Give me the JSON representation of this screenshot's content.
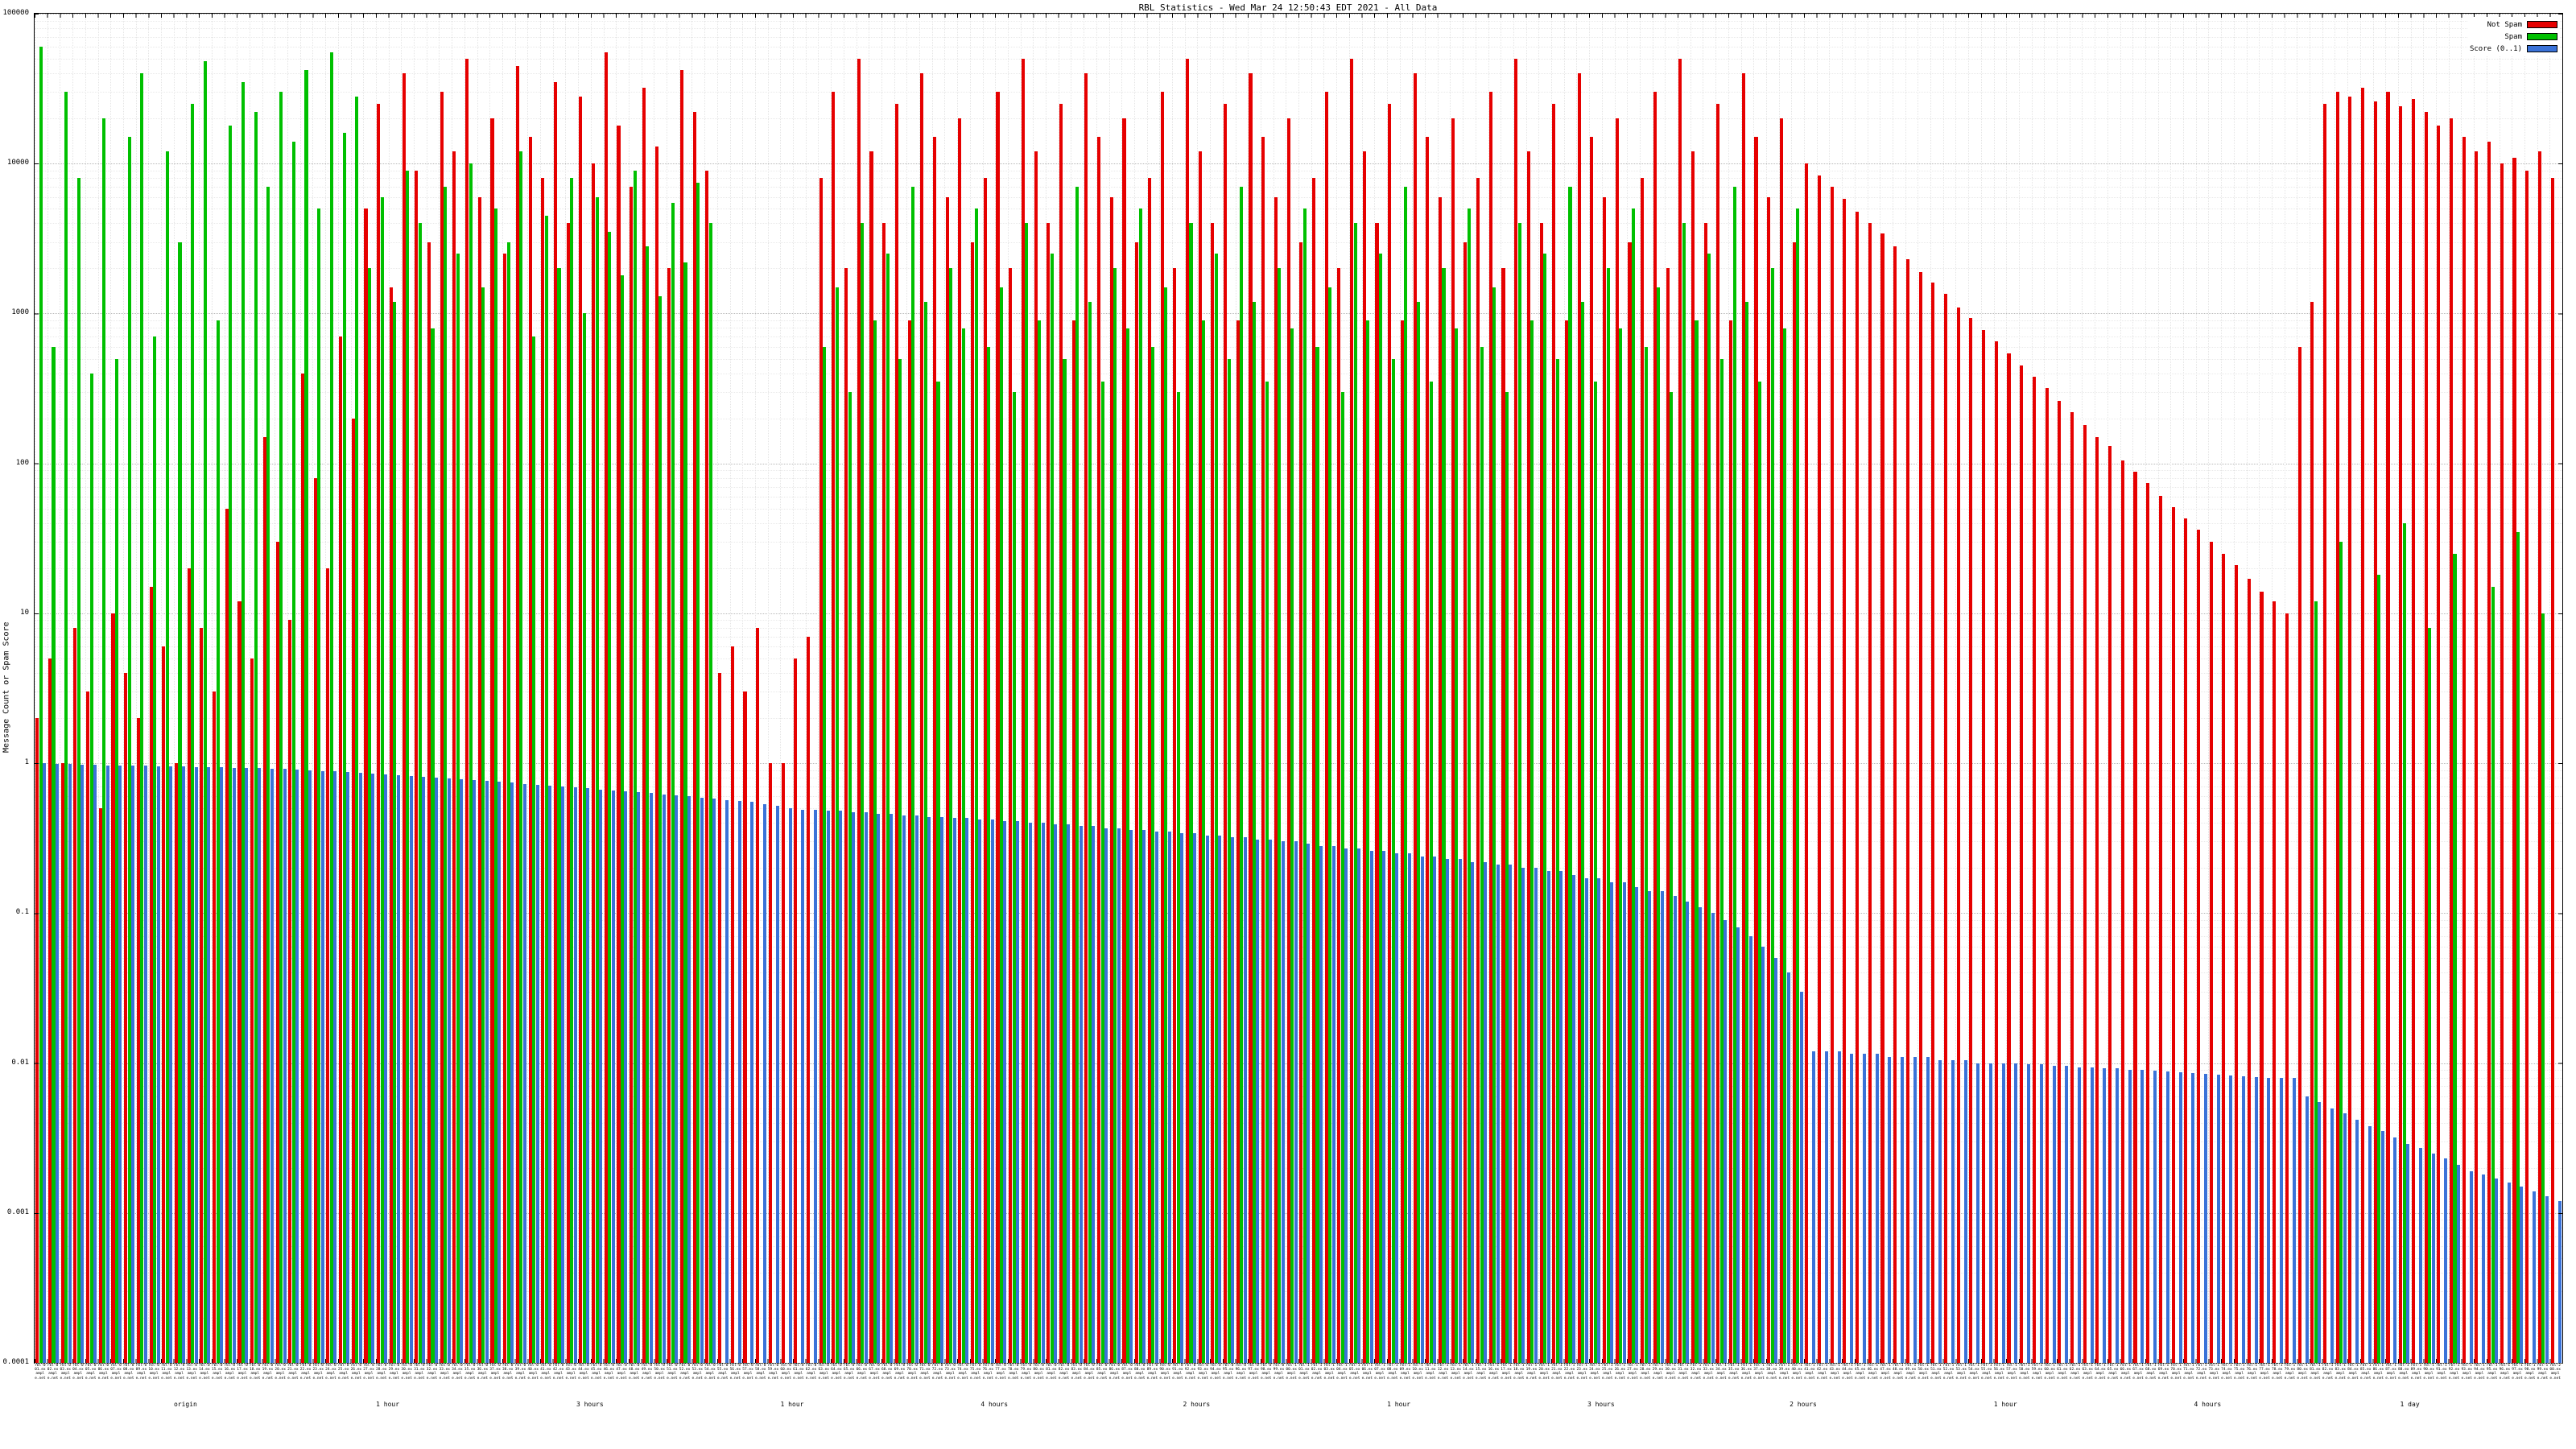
{
  "chart_data": {
    "type": "bar",
    "title": "RBL Statistics - Wed Mar 24 12:50:43 EDT 2021 - All Data",
    "ylabel": "Message Count or Spam Score",
    "y_scale": "log",
    "ylim": [
      0.0001,
      100000
    ],
    "y_ticks": [
      "100000",
      "10000",
      "1000",
      "100",
      "10",
      "1",
      "0.1",
      "0.01",
      "0.001",
      "0.0001"
    ],
    "grid": true,
    "legend_position": "top-right",
    "legend": [
      {
        "label": "Not Spam",
        "color": "#e60000"
      },
      {
        "label": "Spam",
        "color": "#00c000"
      },
      {
        "label": "Score (0..1)",
        "color": "#3a72d8"
      }
    ],
    "x_sublabels": [
      {
        "pos": 0.06,
        "text": "origin"
      },
      {
        "pos": 0.14,
        "text": "1 hour"
      },
      {
        "pos": 0.22,
        "text": "3 hours"
      },
      {
        "pos": 0.3,
        "text": "1 hour"
      },
      {
        "pos": 0.38,
        "text": "4 hours"
      },
      {
        "pos": 0.46,
        "text": "2 hours"
      },
      {
        "pos": 0.54,
        "text": "1 hour"
      },
      {
        "pos": 0.62,
        "text": "3 hours"
      },
      {
        "pos": 0.7,
        "text": "2 hours"
      },
      {
        "pos": 0.78,
        "text": "1 hour"
      },
      {
        "pos": 0.86,
        "text": "4 hours"
      },
      {
        "pos": 0.94,
        "text": "1 day"
      }
    ],
    "categories": [
      "rbl-001.example.net",
      "rbl-002.example.net",
      "rbl-003.example.net",
      "rbl-004.example.net",
      "rbl-005.example.net",
      "rbl-006.example.net",
      "rbl-007.example.net",
      "rbl-008.example.net",
      "rbl-009.example.net",
      "rbl-010.example.net",
      "rbl-011.example.net",
      "rbl-012.example.net",
      "rbl-013.example.net",
      "rbl-014.example.net",
      "rbl-015.example.net",
      "rbl-016.example.net",
      "rbl-017.example.net",
      "rbl-018.example.net",
      "rbl-019.example.net",
      "rbl-020.example.net",
      "rbl-021.example.net",
      "rbl-022.example.net",
      "rbl-023.example.net",
      "rbl-024.example.net",
      "rbl-025.example.net",
      "rbl-026.example.net",
      "rbl-027.example.net",
      "rbl-028.example.net",
      "rbl-029.example.net",
      "rbl-030.example.net",
      "rbl-031.example.net",
      "rbl-032.example.net",
      "rbl-033.example.net",
      "rbl-034.example.net",
      "rbl-035.example.net",
      "rbl-036.example.net",
      "rbl-037.example.net",
      "rbl-038.example.net",
      "rbl-039.example.net",
      "rbl-040.example.net",
      "rbl-041.example.net",
      "rbl-042.example.net",
      "rbl-043.example.net",
      "rbl-044.example.net",
      "rbl-045.example.net",
      "rbl-046.example.net",
      "rbl-047.example.net",
      "rbl-048.example.net",
      "rbl-049.example.net",
      "rbl-050.example.net",
      "rbl-051.example.net",
      "rbl-052.example.net",
      "rbl-053.example.net",
      "rbl-054.example.net",
      "rbl-055.example.net",
      "rbl-056.example.net",
      "rbl-057.example.net",
      "rbl-058.example.net",
      "rbl-059.example.net",
      "rbl-060.example.net",
      "rbl-061.example.net",
      "rbl-062.example.net",
      "rbl-063.example.net",
      "rbl-064.example.net",
      "rbl-065.example.net",
      "rbl-066.example.net",
      "rbl-067.example.net",
      "rbl-068.example.net",
      "rbl-069.example.net",
      "rbl-070.example.net",
      "rbl-071.example.net",
      "rbl-072.example.net",
      "rbl-073.example.net",
      "rbl-074.example.net",
      "rbl-075.example.net",
      "rbl-076.example.net",
      "rbl-077.example.net",
      "rbl-078.example.net",
      "rbl-079.example.net",
      "rbl-080.example.net",
      "rbl-081.example.net",
      "rbl-082.example.net",
      "rbl-083.example.net",
      "rbl-084.example.net",
      "rbl-085.example.net",
      "rbl-086.example.net",
      "rbl-087.example.net",
      "rbl-088.example.net",
      "rbl-089.example.net",
      "rbl-090.example.net",
      "rbl-091.example.net",
      "rbl-092.example.net",
      "rbl-093.example.net",
      "rbl-094.example.net",
      "rbl-095.example.net",
      "rbl-096.example.net",
      "rbl-097.example.net",
      "rbl-098.example.net",
      "rbl-099.example.net",
      "rbl-100.example.net",
      "rbl-101.example.net",
      "rbl-102.example.net",
      "rbl-103.example.net",
      "rbl-104.example.net",
      "rbl-105.example.net",
      "rbl-106.example.net",
      "rbl-107.example.net",
      "rbl-108.example.net",
      "rbl-109.example.net",
      "rbl-110.example.net",
      "rbl-111.example.net",
      "rbl-112.example.net",
      "rbl-113.example.net",
      "rbl-114.example.net",
      "rbl-115.example.net",
      "rbl-116.example.net",
      "rbl-117.example.net",
      "rbl-118.example.net",
      "rbl-119.example.net",
      "rbl-120.example.net",
      "rbl-121.example.net",
      "rbl-122.example.net",
      "rbl-123.example.net",
      "rbl-124.example.net",
      "rbl-125.example.net",
      "rbl-126.example.net",
      "rbl-127.example.net",
      "rbl-128.example.net",
      "rbl-129.example.net",
      "rbl-130.example.net",
      "rbl-131.example.net",
      "rbl-132.example.net",
      "rbl-133.example.net",
      "rbl-134.example.net",
      "rbl-135.example.net",
      "rbl-136.example.net",
      "rbl-137.example.net",
      "rbl-138.example.net",
      "rbl-139.example.net",
      "rbl-140.example.net",
      "rbl-141.example.net",
      "rbl-142.example.net",
      "rbl-143.example.net",
      "rbl-144.example.net",
      "rbl-145.example.net",
      "rbl-146.example.net",
      "rbl-147.example.net",
      "rbl-148.example.net",
      "rbl-149.example.net",
      "rbl-150.example.net",
      "rbl-151.example.net",
      "rbl-152.example.net",
      "rbl-153.example.net",
      "rbl-154.example.net",
      "rbl-155.example.net",
      "rbl-156.example.net",
      "rbl-157.example.net",
      "rbl-158.example.net",
      "rbl-159.example.net",
      "rbl-160.example.net",
      "rbl-161.example.net",
      "rbl-162.example.net",
      "rbl-163.example.net",
      "rbl-164.example.net",
      "rbl-165.example.net",
      "rbl-166.example.net",
      "rbl-167.example.net",
      "rbl-168.example.net",
      "rbl-169.example.net",
      "rbl-170.example.net",
      "rbl-171.example.net",
      "rbl-172.example.net",
      "rbl-173.example.net",
      "rbl-174.example.net",
      "rbl-175.example.net",
      "rbl-176.example.net",
      "rbl-177.example.net",
      "rbl-178.example.net",
      "rbl-179.example.net",
      "rbl-180.example.net",
      "rbl-181.example.net",
      "rbl-182.example.net",
      "rbl-183.example.net",
      "rbl-184.example.net",
      "rbl-185.example.net",
      "rbl-186.example.net",
      "rbl-187.example.net",
      "rbl-188.example.net",
      "rbl-189.example.net",
      "rbl-190.example.net",
      "rbl-191.example.net",
      "rbl-192.example.net",
      "rbl-193.example.net",
      "rbl-194.example.net",
      "rbl-195.example.net",
      "rbl-196.example.net",
      "rbl-197.example.net",
      "rbl-198.example.net",
      "rbl-199.example.net",
      "rbl-200.example.net"
    ],
    "series": [
      {
        "name": "Not Spam",
        "values": [
          2,
          5,
          1,
          8,
          3,
          0.5,
          10,
          4,
          2,
          15,
          6,
          1,
          20,
          8,
          3,
          50,
          12,
          5,
          150,
          30,
          9,
          400,
          80,
          20,
          700,
          200,
          5000,
          25000,
          1500,
          40000,
          9000,
          3000,
          30000,
          12000,
          50000,
          6000,
          20000,
          2500,
          45000,
          15000,
          8000,
          35000,
          4000,
          28000,
          10000,
          55000,
          18000,
          7000,
          32000,
          13000,
          2000,
          42000,
          22000,
          9000,
          4,
          6,
          3,
          8,
          1,
          1,
          5,
          7,
          8000,
          30000,
          2000,
          50000,
          12000,
          4000,
          25000,
          900,
          40000,
          15000,
          6000,
          20000,
          3000,
          8000,
          30000,
          2000,
          50000,
          12000,
          4000,
          25000,
          900,
          40000,
          15000,
          6000,
          20000,
          3000,
          8000,
          30000,
          2000,
          50000,
          12000,
          4000,
          25000,
          900,
          40000,
          15000,
          6000,
          20000,
          3000,
          8000,
          30000,
          2000,
          50000,
          12000,
          4000,
          25000,
          900,
          40000,
          15000,
          6000,
          20000,
          3000,
          8000,
          30000,
          2000,
          50000,
          12000,
          4000,
          25000,
          900,
          40000,
          15000,
          6000,
          20000,
          3000,
          8000,
          30000,
          2000,
          50000,
          12000,
          4000,
          25000,
          900,
          40000,
          15000,
          6000,
          20000,
          3000,
          10000,
          8300,
          7000,
          5800,
          4800,
          4000,
          3400,
          2800,
          2300,
          1900,
          1600,
          1350,
          1100,
          930,
          780,
          650,
          540,
          450,
          380,
          320,
          260,
          220,
          180,
          150,
          130,
          105,
          88,
          74,
          61,
          51,
          43,
          36,
          30,
          25,
          21,
          17,
          14,
          12,
          10,
          600,
          1200,
          25000,
          30000,
          28000,
          32000,
          26000,
          30000,
          24000,
          27000,
          22000,
          18000,
          20000,
          15000,
          12000,
          14000,
          10000,
          11000,
          9000,
          12000,
          8000
        ]
      },
      {
        "name": "Spam",
        "values": [
          60000,
          600,
          30000,
          8000,
          400,
          20000,
          500,
          15000,
          40000,
          700,
          12000,
          3000,
          25000,
          48000,
          900,
          18000,
          35000,
          22000,
          7000,
          30000,
          14000,
          42000,
          5000,
          55000,
          16000,
          28000,
          2000,
          6000,
          1200,
          9000,
          4000,
          800,
          7000,
          2500,
          10000,
          1500,
          5000,
          3000,
          12000,
          700,
          4500,
          2000,
          8000,
          1000,
          6000,
          3500,
          1800,
          9000,
          2800,
          1300,
          5500,
          2200,
          7500,
          4000,
          0,
          0,
          0,
          0,
          0,
          0,
          0,
          0,
          600,
          1500,
          300,
          4000,
          900,
          2500,
          500,
          7000,
          1200,
          350,
          2000,
          800,
          5000,
          600,
          1500,
          300,
          4000,
          900,
          2500,
          500,
          7000,
          1200,
          350,
          2000,
          800,
          5000,
          600,
          1500,
          300,
          4000,
          900,
          2500,
          500,
          7000,
          1200,
          350,
          2000,
          800,
          5000,
          600,
          1500,
          300,
          4000,
          900,
          2500,
          500,
          7000,
          1200,
          350,
          2000,
          800,
          5000,
          600,
          1500,
          300,
          4000,
          900,
          2500,
          500,
          7000,
          1200,
          350,
          2000,
          800,
          5000,
          600,
          1500,
          300,
          4000,
          900,
          2500,
          500,
          7000,
          1200,
          350,
          2000,
          800,
          5000,
          0,
          0,
          0,
          0,
          0,
          0,
          0,
          0,
          0,
          0,
          0,
          0,
          0,
          0,
          0,
          0,
          0,
          0,
          0,
          0,
          0,
          0,
          0,
          0,
          0,
          0,
          0,
          0,
          0,
          0,
          0,
          0,
          0,
          0,
          0,
          0,
          0,
          0,
          0,
          0,
          12,
          0,
          30,
          0,
          0,
          18,
          0,
          40,
          0,
          8,
          0,
          25,
          0,
          0,
          15,
          0,
          35,
          0,
          10,
          0
        ]
      },
      {
        "name": "Score (0..1)",
        "values": [
          1.0,
          0.99,
          0.99,
          0.98,
          0.98,
          0.97,
          0.97,
          0.96,
          0.96,
          0.95,
          0.95,
          0.95,
          0.94,
          0.94,
          0.94,
          0.93,
          0.93,
          0.93,
          0.92,
          0.92,
          0.91,
          0.9,
          0.89,
          0.88,
          0.87,
          0.86,
          0.85,
          0.84,
          0.83,
          0.82,
          0.81,
          0.8,
          0.79,
          0.78,
          0.77,
          0.76,
          0.75,
          0.74,
          0.73,
          0.72,
          0.71,
          0.7,
          0.69,
          0.68,
          0.67,
          0.66,
          0.65,
          0.64,
          0.63,
          0.62,
          0.61,
          0.6,
          0.59,
          0.58,
          0.57,
          0.56,
          0.55,
          0.53,
          0.52,
          0.5,
          0.49,
          0.49,
          0.48,
          0.48,
          0.47,
          0.47,
          0.46,
          0.46,
          0.45,
          0.45,
          0.44,
          0.44,
          0.43,
          0.43,
          0.42,
          0.42,
          0.41,
          0.41,
          0.4,
          0.4,
          0.39,
          0.39,
          0.38,
          0.38,
          0.37,
          0.37,
          0.36,
          0.36,
          0.35,
          0.35,
          0.34,
          0.34,
          0.33,
          0.33,
          0.32,
          0.32,
          0.31,
          0.31,
          0.3,
          0.3,
          0.29,
          0.28,
          0.28,
          0.27,
          0.27,
          0.26,
          0.26,
          0.25,
          0.25,
          0.24,
          0.24,
          0.23,
          0.23,
          0.22,
          0.22,
          0.21,
          0.21,
          0.2,
          0.2,
          0.19,
          0.19,
          0.18,
          0.17,
          0.17,
          0.16,
          0.16,
          0.15,
          0.14,
          0.14,
          0.13,
          0.12,
          0.11,
          0.1,
          0.09,
          0.08,
          0.07,
          0.06,
          0.05,
          0.04,
          0.03,
          0.012,
          0.012,
          0.012,
          0.0115,
          0.0115,
          0.0115,
          0.011,
          0.011,
          0.011,
          0.011,
          0.0105,
          0.0105,
          0.0105,
          0.01,
          0.01,
          0.01,
          0.01,
          0.0098,
          0.0098,
          0.0096,
          0.0096,
          0.0094,
          0.0094,
          0.0092,
          0.0092,
          0.009,
          0.009,
          0.0089,
          0.0088,
          0.0087,
          0.0086,
          0.0085,
          0.0084,
          0.0083,
          0.0082,
          0.0081,
          0.008,
          0.008,
          0.008,
          0.006,
          0.0055,
          0.005,
          0.0046,
          0.0042,
          0.0038,
          0.0035,
          0.0032,
          0.0029,
          0.0027,
          0.0025,
          0.0023,
          0.0021,
          0.0019,
          0.0018,
          0.0017,
          0.0016,
          0.0015,
          0.0014,
          0.0013,
          0.0012
        ]
      }
    ]
  }
}
